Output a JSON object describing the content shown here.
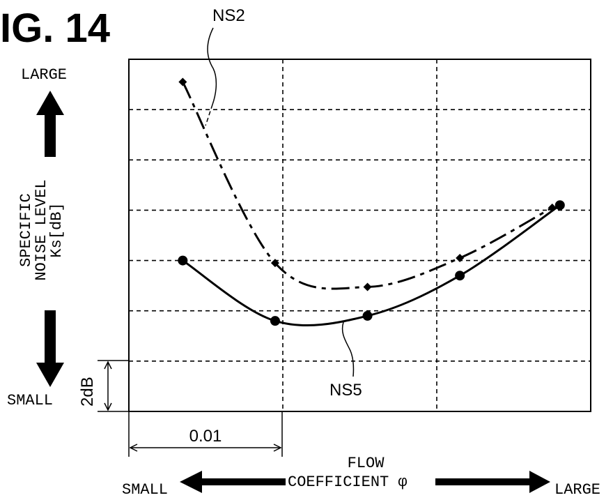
{
  "figure": {
    "title": "IG. 14"
  },
  "chart_data": {
    "type": "line",
    "xlabel_line1": "FLOW",
    "xlabel_line2": "COEFFICIENT φ",
    "x_small": "SMALL",
    "x_large": "LARGE",
    "ylabel_lines": [
      "SPECIFIC",
      "NOISE LEVEL",
      "Ks[dB]"
    ],
    "y_large": "LARGE",
    "y_small": "SMALL",
    "scale_x_label": "0.01",
    "scale_y_label": "2dB",
    "xlim": [
      0,
      0.03
    ],
    "ylim": [
      0,
      14
    ],
    "grid": true,
    "series": [
      {
        "name": "NS2",
        "marker": "diamond",
        "line": "dash-dot",
        "points": [
          [
            0.0035,
            13.1
          ],
          [
            0.0095,
            5.9
          ],
          [
            0.0155,
            4.95
          ],
          [
            0.0215,
            6.1
          ],
          [
            0.0275,
            8.1
          ]
        ]
      },
      {
        "name": "NS5",
        "marker": "circle",
        "line": "solid",
        "points": [
          [
            0.0035,
            6.0
          ],
          [
            0.0095,
            3.6
          ],
          [
            0.0155,
            3.8
          ],
          [
            0.0215,
            5.4
          ],
          [
            0.028,
            8.2
          ]
        ]
      }
    ]
  }
}
